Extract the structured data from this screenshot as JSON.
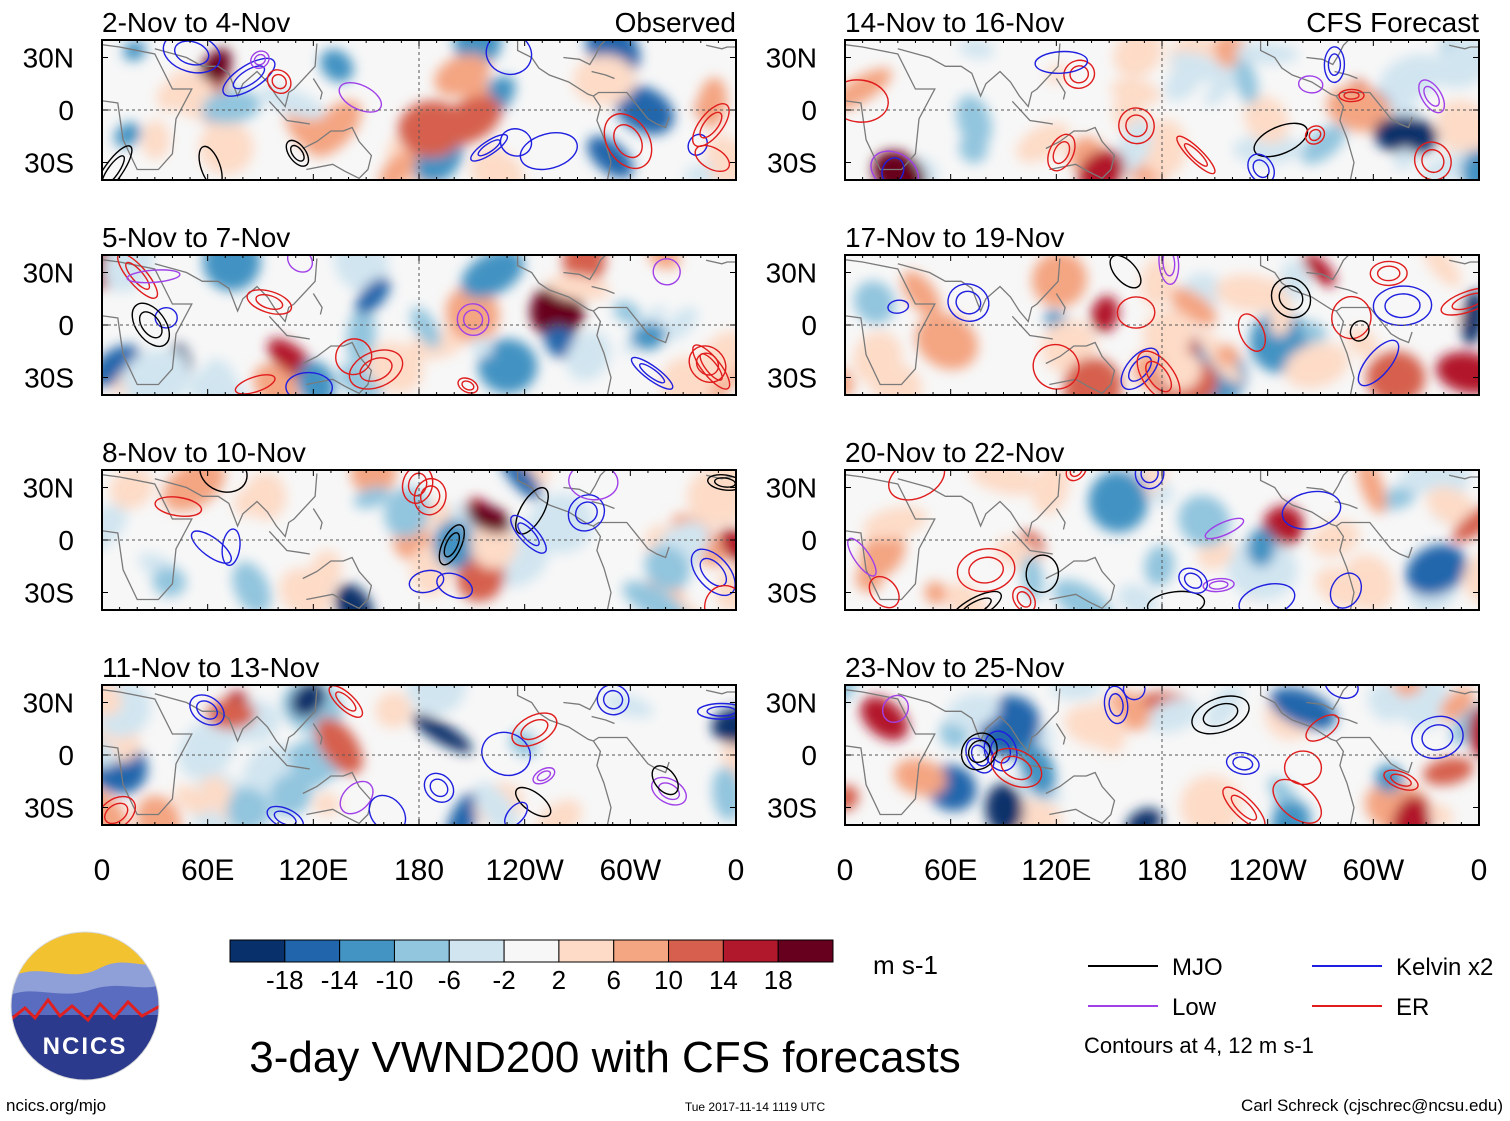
{
  "chart_data": {
    "type": "heatmap",
    "title": "3-day VWND200 with CFS forecasts",
    "variable": "VWND200",
    "units": "m s-1",
    "columns": [
      {
        "label": "Observed",
        "panels": [
          "2-Nov to 4-Nov",
          "5-Nov to 7-Nov",
          "8-Nov to 10-Nov",
          "11-Nov to 13-Nov"
        ]
      },
      {
        "label": "CFS Forecast",
        "panels": [
          "14-Nov to 16-Nov",
          "17-Nov to 19-Nov",
          "20-Nov to 22-Nov",
          "23-Nov to 25-Nov"
        ]
      }
    ],
    "y_ticks": [
      {
        "lat": 30,
        "label": "30N"
      },
      {
        "lat": 0,
        "label": "0"
      },
      {
        "lat": -30,
        "label": "30S"
      }
    ],
    "x_ticks": [
      {
        "lon": 0,
        "label": "0"
      },
      {
        "lon": 60,
        "label": "60E"
      },
      {
        "lon": 120,
        "label": "120E"
      },
      {
        "lon": 180,
        "label": "180"
      },
      {
        "lon": 240,
        "label": "120W"
      },
      {
        "lon": 300,
        "label": "60W"
      },
      {
        "lon": 360,
        "label": "0"
      }
    ],
    "lat_range": [
      -40,
      40
    ],
    "lon_range": [
      0,
      360
    ],
    "colorbar": {
      "levels": [
        -18,
        -14,
        -10,
        -6,
        -2,
        2,
        6,
        10,
        14,
        18
      ],
      "level_labels": [
        "-18",
        "-14",
        "-10",
        "-6",
        "-2",
        "2",
        "6",
        "10",
        "14",
        "18"
      ],
      "colors": [
        "#08306b",
        "#2166ac",
        "#4393c3",
        "#92c5de",
        "#d1e5f0",
        "#f7f7f7",
        "#fddbc7",
        "#f4a582",
        "#d6604d",
        "#b2182b",
        "#67001f"
      ]
    },
    "contours": {
      "legend": [
        {
          "name": "MJO",
          "color": "#000000"
        },
        {
          "name": "Kelvin x2",
          "color": "#1f1fe0"
        },
        {
          "name": "Low",
          "color": "#a040e8"
        },
        {
          "name": "ER",
          "color": "#e01c1c"
        }
      ],
      "note": "Contours at 4, 12 m s-1"
    }
  },
  "footer": {
    "logo_text": "NCICS",
    "url": "ncics.org/mjo",
    "timestamp": "Tue 2017-11-14 1119 UTC",
    "credit": "Carl Schreck (cjschrec@ncsu.edu)"
  }
}
